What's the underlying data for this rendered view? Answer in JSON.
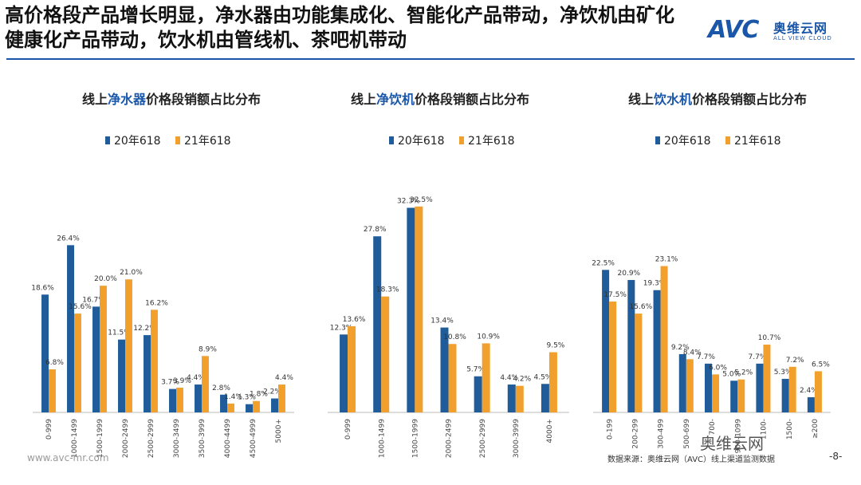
{
  "headline": "高价格段产品增长明显，净水器由功能集成化、智能化产品带动，净饮机由矿化健康化产品带动，饮水机由管线机、茶吧机带动",
  "logo": {
    "mark": "AVC",
    "cn": "奥维云网",
    "en": "ALL VIEW CLOUD"
  },
  "footer": {
    "website": "www.avc-mr.com",
    "source": "数据来源：奥维云网（AVC）线上渠道监测数据",
    "page": "-8-",
    "badge": "奥维云网"
  },
  "colors": {
    "s20": "#1f5c99",
    "s21": "#f2a02d",
    "accent": "#1b57a8"
  },
  "chart_data": [
    {
      "type": "bar",
      "title_parts": [
        "线上",
        "净水器",
        "价格段销额占比分布"
      ],
      "categories": [
        "0-999",
        "1000-1499",
        "1500-1999",
        "2000-2499",
        "2500-2999",
        "3000-3499",
        "3500-3999",
        "4000-4499",
        "4500-4999",
        "5000+"
      ],
      "series": [
        {
          "name": "20年618",
          "values": [
            18.6,
            26.4,
            16.7,
            11.5,
            12.2,
            3.7,
            4.4,
            2.8,
            1.3,
            2.2
          ],
          "labels": [
            "18.6%",
            "26.4%",
            "16.7%",
            "11.5%",
            "12.2%",
            "3.7%",
            "4.4%",
            "2.8%",
            "1.3%",
            "2.2%"
          ]
        },
        {
          "name": "21年618",
          "values": [
            6.8,
            15.6,
            20.0,
            21.0,
            16.2,
            3.9,
            8.9,
            1.4,
            1.8,
            4.4
          ],
          "labels": [
            "6.8%",
            "15.6%",
            "20.0%",
            "21.0%",
            "16.2%",
            "3.9%",
            "8.9%",
            "1.4%",
            "1.8%",
            "4.4%"
          ]
        }
      ],
      "ylim": [
        0,
        34
      ]
    },
    {
      "type": "bar",
      "title_parts": [
        "线上",
        "净饮机",
        "价格段销额占比分布"
      ],
      "categories": [
        "0-999",
        "1000-1499",
        "1500-1999",
        "2000-2499",
        "2500-2999",
        "3000-3999",
        "4000+"
      ],
      "series": [
        {
          "name": "20年618",
          "values": [
            12.3,
            27.8,
            32.3,
            13.4,
            5.7,
            4.4,
            4.5
          ],
          "labels": [
            "12.3%",
            "27.8%",
            "32.3%",
            "13.4%",
            "5.7%",
            "4.4%",
            "4.5%"
          ]
        },
        {
          "name": "21年618",
          "values": [
            13.6,
            18.3,
            32.5,
            10.8,
            10.9,
            4.2,
            9.5
          ],
          "labels": [
            "13.6%",
            "18.3%",
            "32.5%",
            "10.8%",
            "10.9%",
            "4.2%",
            "9.5%"
          ]
        }
      ],
      "ylim": [
        0,
        34
      ]
    },
    {
      "type": "bar",
      "title_parts": [
        "线上",
        "饮水机",
        "价格段销额占比分布"
      ],
      "categories": [
        "0-199",
        "200-299",
        "300-499",
        "500-699",
        "700-",
        "900-1099",
        "1100-",
        "1500-",
        "≥200"
      ],
      "series": [
        {
          "name": "20年618",
          "values": [
            22.5,
            20.9,
            19.3,
            9.2,
            7.7,
            5.0,
            7.7,
            5.3,
            2.4
          ],
          "labels": [
            "22.5%",
            "20.9%",
            "19.3%",
            "9.2%",
            "7.7%",
            "5.0%",
            "7.7%",
            "5.3%",
            "2.4%"
          ]
        },
        {
          "name": "21年618",
          "values": [
            17.5,
            15.6,
            23.1,
            8.4,
            6.0,
            5.2,
            10.7,
            7.2,
            6.5
          ],
          "labels": [
            "17.5%",
            "15.6%",
            "23.1%",
            "8.4%",
            "6.0%",
            "5.2%",
            "10.7%",
            "7.2%",
            "6.5%"
          ]
        }
      ],
      "ylim": [
        0,
        34
      ]
    }
  ]
}
